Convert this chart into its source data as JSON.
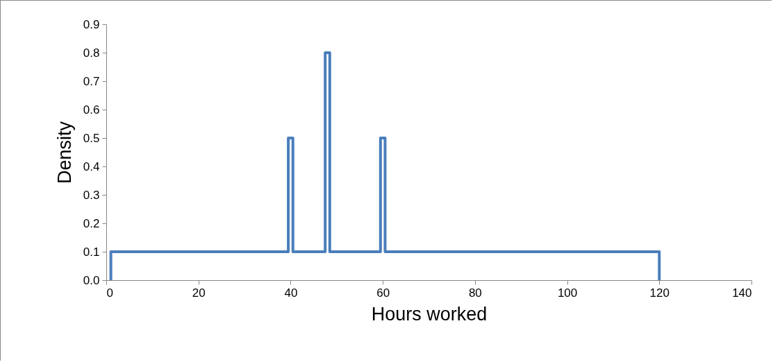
{
  "chart_data": {
    "type": "line",
    "xlabel": "Hours worked",
    "ylabel": "Density",
    "xlim": [
      0,
      140
    ],
    "xticks": [
      0,
      20,
      40,
      60,
      80,
      100,
      120,
      140
    ],
    "ylim": [
      0,
      0.9
    ],
    "yticks": [
      {
        "value": 0,
        "label": "0.0"
      },
      0.1,
      0.2,
      0.3,
      0.4,
      0.5,
      0.6,
      0.7,
      0.8,
      0.9
    ],
    "series": [
      {
        "color": "#4a7ebb",
        "x": [
          1,
          1,
          39.5,
          39.5,
          40.5,
          40.5,
          47.5,
          47.5,
          48.5,
          48.5,
          59.5,
          59.5,
          60.5,
          60.5,
          120,
          120
        ],
        "values": [
          0,
          0.1,
          0.1,
          0.5,
          0.5,
          0.1,
          0.1,
          0.8,
          0.8,
          0.1,
          0.1,
          0.5,
          0.5,
          0.1,
          0.1,
          0
        ]
      }
    ]
  }
}
